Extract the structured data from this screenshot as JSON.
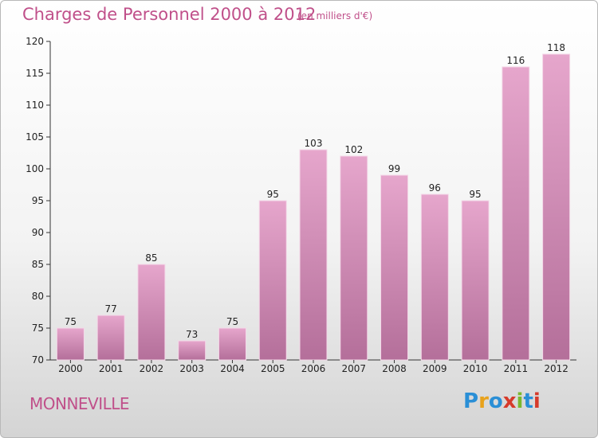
{
  "chart_data": {
    "type": "bar",
    "title": "Charges de Personnel 2000 à 2012",
    "subtitle": "(en milliers d'€)",
    "categories": [
      "2000",
      "2001",
      "2002",
      "2003",
      "2004",
      "2005",
      "2006",
      "2007",
      "2008",
      "2009",
      "2010",
      "2011",
      "2012"
    ],
    "values": [
      75,
      77,
      85,
      73,
      75,
      95,
      103,
      102,
      99,
      96,
      95,
      116,
      118
    ],
    "ylim": [
      70,
      120
    ],
    "yticks": [
      70,
      75,
      80,
      85,
      90,
      95,
      100,
      105,
      110,
      115,
      120
    ],
    "grid": false,
    "bar_color_top": "#e6a6cc",
    "bar_color_bottom": "#b46f9a"
  },
  "footer": {
    "commune": "MONNEVILLE",
    "logo_letters": [
      "P",
      "r",
      "o",
      "x",
      "i",
      "t",
      "i"
    ],
    "logo_colors": [
      "#2a8fd6",
      "#e8a21c",
      "#2a8fd6",
      "#d63a2a",
      "#7ab82e",
      "#2a8fd6",
      "#d63a2a"
    ]
  }
}
